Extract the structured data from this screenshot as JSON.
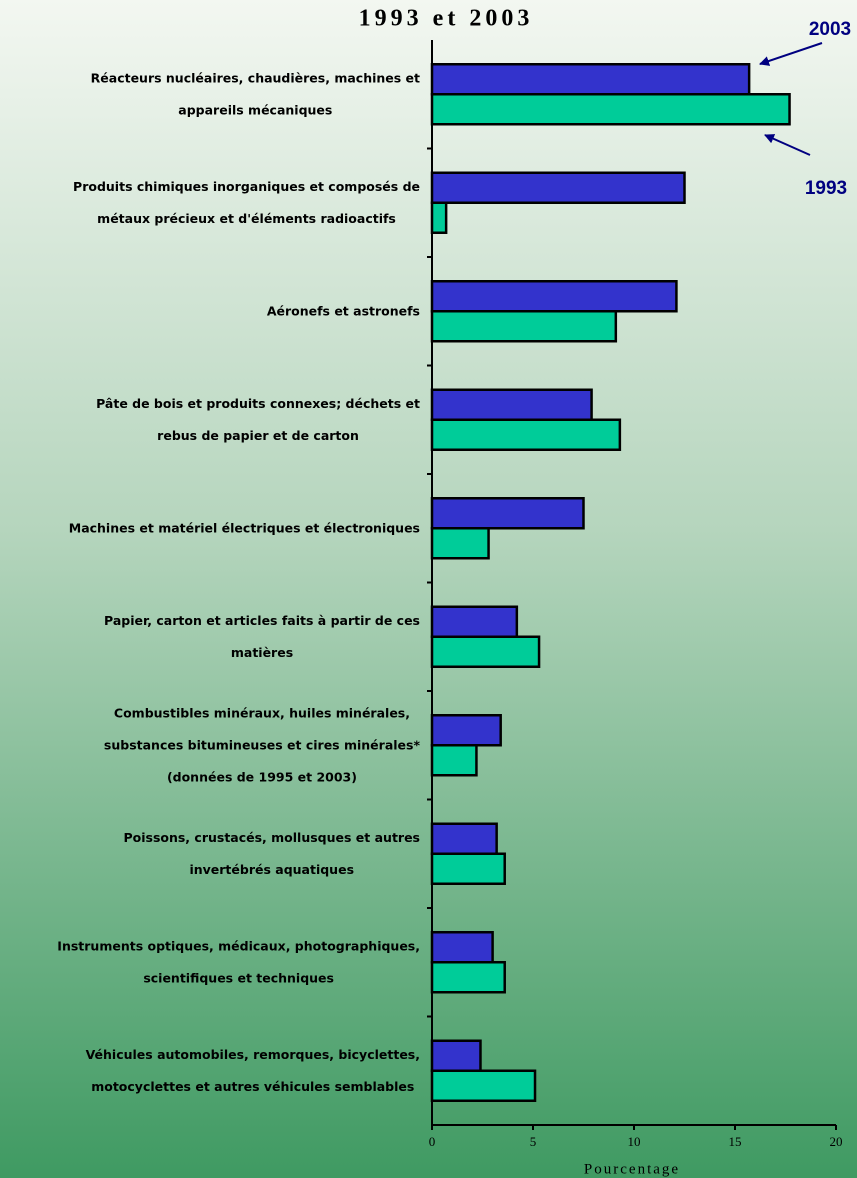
{
  "chart_data": {
    "type": "hbar",
    "title": "1993 et 2003",
    "categories": [
      "Réacteurs nucléaires, chaudières, machines et\nappareils mécaniques",
      "Produits chimiques inorganiques et composés de\nmétaux précieux et d'éléments radioactifs",
      "Aéronefs et astronefs",
      "Pâte de bois et produits connexes; déchets et\nrebus de papier et de carton",
      "Machines et matériel électriques et électroniques",
      "Papier, carton et articles faits à partir de ces\nmatières",
      "Combustibles minéraux, huiles minérales,\nsubstances bitumineuses et cires minérales*\n(données de 1995 et 2003)",
      "Poissons, crustacés, mollusques et autres\ninvertébrés aquatiques",
      "Instruments optiques, médicaux, photographiques,\nscientifiques et techniques",
      "Véhicules automobiles, remorques, bicyclettes,\nmotocyclettes et autres véhicules semblables"
    ],
    "series": [
      {
        "name": "2003",
        "color": "#3333cc",
        "values": [
          15.7,
          12.5,
          12.1,
          7.9,
          7.5,
          4.2,
          3.4,
          3.2,
          3.0,
          2.4
        ]
      },
      {
        "name": "1993",
        "color": "#00cc99",
        "values": [
          17.7,
          0.7,
          9.1,
          9.3,
          2.8,
          5.3,
          2.2,
          3.6,
          3.6,
          5.1
        ]
      }
    ],
    "xlabel": "Pourcentage",
    "xlim": [
      0,
      20
    ],
    "xticks": [
      0,
      5,
      10,
      15,
      20
    ]
  }
}
